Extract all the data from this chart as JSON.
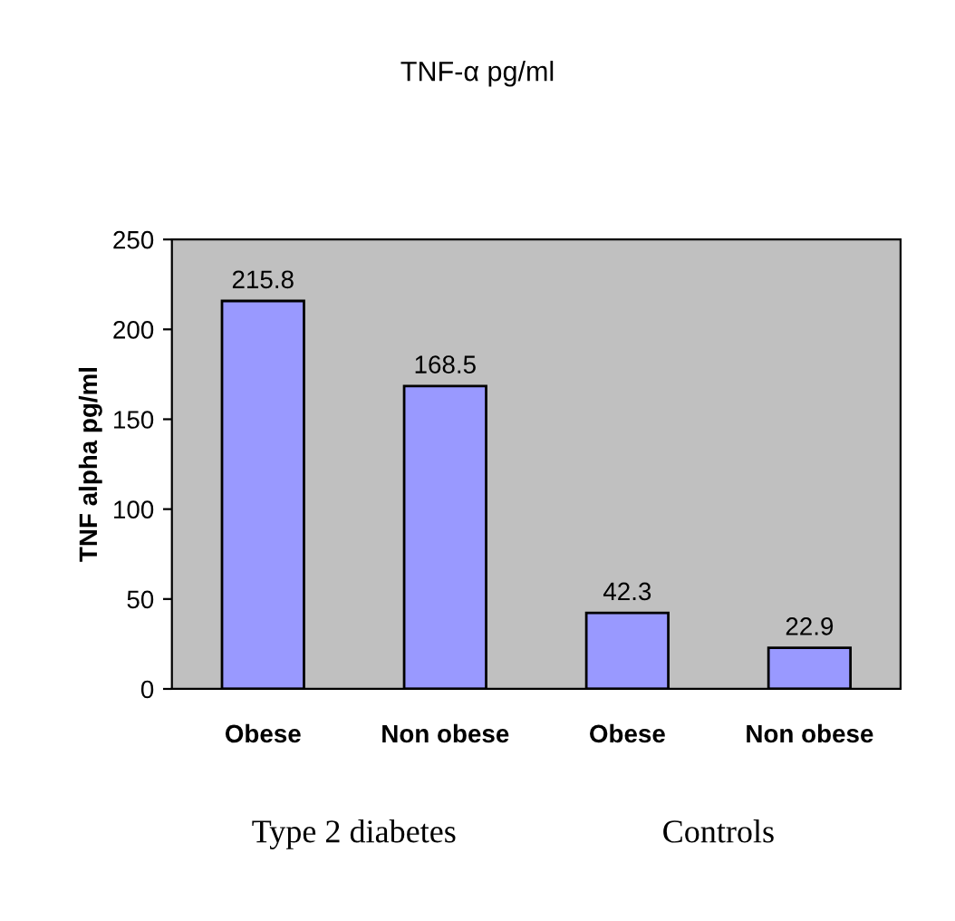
{
  "chart_data": {
    "type": "bar",
    "title": "TNF-α pg/ml",
    "ylabel": "TNF alpha pg/ml",
    "categories": [
      "Obese",
      "Non obese",
      "Obese",
      "Non obese"
    ],
    "values": [
      215.8,
      168.5,
      42.3,
      22.9
    ],
    "color": "#9999ff",
    "ylim": [
      0,
      250
    ],
    "yticks": [
      0,
      50,
      100,
      150,
      200,
      250
    ],
    "grid": false,
    "data_labels": true,
    "annotations": [
      "Type 2 diabetes",
      "Controls"
    ]
  }
}
